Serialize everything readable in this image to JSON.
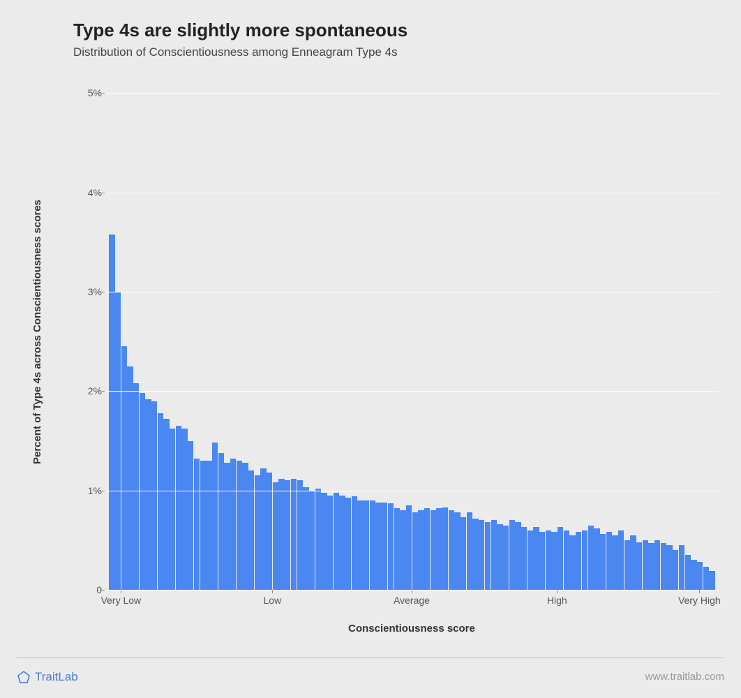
{
  "background_color": "#ebebeb",
  "title": "Type 4s are slightly more spontaneous",
  "subtitle": "Distribution of Conscientiousness among Enneagram Type 4s",
  "title_fontsize": 26,
  "subtitle_fontsize": 17,
  "chart": {
    "type": "histogram",
    "bar_color": "#4a87f0",
    "grid_color": "#ffffff",
    "ylim": [
      0,
      5.2
    ],
    "y_ticks": [
      {
        "v": 0,
        "label": "0"
      },
      {
        "v": 1,
        "label": "1%"
      },
      {
        "v": 2,
        "label": "2%"
      },
      {
        "v": 3,
        "label": "3%"
      },
      {
        "v": 4,
        "label": "4%"
      },
      {
        "v": 5,
        "label": "5%"
      }
    ],
    "x_ticks": [
      {
        "pos": 0.02,
        "label": "Very Low"
      },
      {
        "pos": 0.27,
        "label": "Low"
      },
      {
        "pos": 0.5,
        "label": "Average"
      },
      {
        "pos": 0.74,
        "label": "High"
      },
      {
        "pos": 0.975,
        "label": "Very High"
      }
    ],
    "xlabel": "Conscientiousness score",
    "ylabel": "Percent of Type 4s across Conscientiousness scores",
    "values": [
      3.58,
      3.0,
      2.45,
      2.25,
      2.08,
      1.98,
      1.92,
      1.9,
      1.78,
      1.72,
      1.62,
      1.65,
      1.62,
      1.5,
      1.32,
      1.3,
      1.3,
      1.48,
      1.38,
      1.28,
      1.32,
      1.3,
      1.28,
      1.2,
      1.15,
      1.22,
      1.18,
      1.08,
      1.12,
      1.1,
      1.12,
      1.1,
      1.03,
      1.0,
      1.02,
      0.98,
      0.95,
      0.98,
      0.95,
      0.93,
      0.94,
      0.9,
      0.9,
      0.9,
      0.88,
      0.88,
      0.87,
      0.82,
      0.8,
      0.85,
      0.78,
      0.8,
      0.82,
      0.8,
      0.82,
      0.83,
      0.8,
      0.78,
      0.73,
      0.78,
      0.72,
      0.7,
      0.68,
      0.7,
      0.66,
      0.65,
      0.7,
      0.68,
      0.63,
      0.6,
      0.63,
      0.58,
      0.6,
      0.58,
      0.63,
      0.6,
      0.55,
      0.58,
      0.6,
      0.65,
      0.62,
      0.56,
      0.58,
      0.55,
      0.6,
      0.5,
      0.55,
      0.48,
      0.5,
      0.47,
      0.5,
      0.47,
      0.45,
      0.4,
      0.45,
      0.35,
      0.3,
      0.28,
      0.23,
      0.19
    ]
  },
  "footer": {
    "brand_text": "TraitLab",
    "brand_color": "#4a7dd4",
    "url_text": "www.traitlab.com",
    "url_color": "#999999"
  }
}
